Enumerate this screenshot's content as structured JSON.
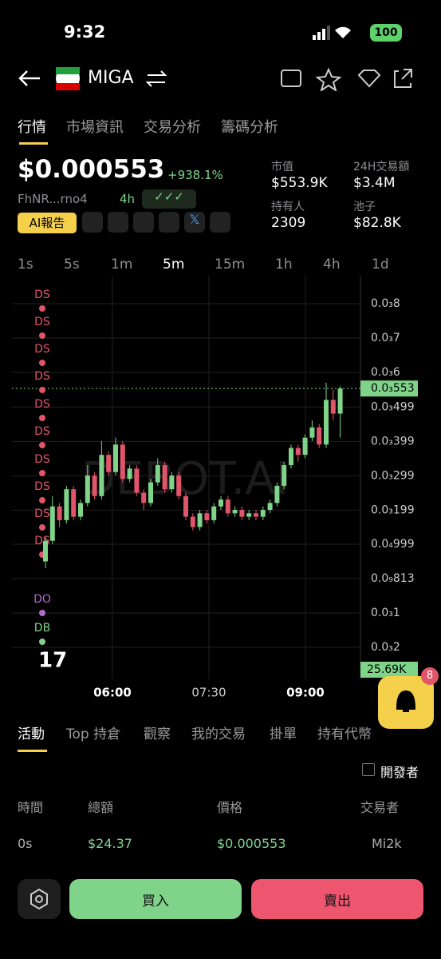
{
  "status": {
    "time": "9:32",
    "battery": "100"
  },
  "header": {
    "symbol": "MIGA"
  },
  "tabs": [
    "行情",
    "市場資訊",
    "交易分析",
    "籌碼分析"
  ],
  "token": {
    "price": "$0.000553",
    "change": "+938.1%",
    "address": "FhNR...rno4",
    "age": "4h",
    "ai_button": "AI報告"
  },
  "stats": [
    {
      "label": "市值",
      "value": "$553.9K"
    },
    {
      "label": "24H交易額",
      "value": "$3.4M"
    },
    {
      "label": "持有人",
      "value": "2309"
    },
    {
      "label": "池子",
      "value": "$82.8K"
    }
  ],
  "timeframes": [
    "1s",
    "5s",
    "1m",
    "5m",
    "15m",
    "1h",
    "4h",
    "1d"
  ],
  "chart_data": {
    "type": "candlestick",
    "watermark": "DEBOT.AI",
    "ylim": [
      0,
      0.000858
    ],
    "yticks": [
      {
        "value": 0.0008,
        "label": "0.0₃8"
      },
      {
        "value": 0.0007,
        "label": "0.0₃7"
      },
      {
        "value": 0.0006,
        "label": "0.0₃6"
      },
      {
        "value": 0.000499,
        "label": "0.0₃499"
      },
      {
        "value": 0.000399,
        "label": "0.0₃399"
      },
      {
        "value": 0.000299,
        "label": "0.0₃299"
      },
      {
        "value": 0.000199,
        "label": "0.0₃199"
      },
      {
        "value": 9.99e-05,
        "label": "0.0₄999"
      }
    ],
    "axis_extra_labels": [
      "0.0₉813",
      "0.0₃1",
      "0.0₃2"
    ],
    "current_price": {
      "value": 0.000553,
      "label": "0.0₃553"
    },
    "volume_label": "25.69K",
    "x_labels": [
      "06:00",
      "07:30",
      "09:00"
    ],
    "markers": [
      "DS",
      "DS",
      "DS",
      "DS",
      "DS",
      "DS",
      "DS",
      "DS",
      "DS",
      "DS",
      "DO",
      "DB"
    ],
    "up_color": "#7fd48a",
    "down_color": "#e0556a",
    "candles": [
      {
        "open": 5e-05,
        "high": 0.00012,
        "low": 3e-05,
        "close": 0.00011
      },
      {
        "open": 0.00011,
        "high": 0.00024,
        "low": 0.0001,
        "close": 0.00021
      },
      {
        "open": 0.00021,
        "high": 0.00022,
        "low": 0.00015,
        "close": 0.00017
      },
      {
        "open": 0.00017,
        "high": 0.00027,
        "low": 0.00016,
        "close": 0.00026
      },
      {
        "open": 0.00026,
        "high": 0.00027,
        "low": 0.00017,
        "close": 0.00018
      },
      {
        "open": 0.00018,
        "high": 0.00023,
        "low": 0.00017,
        "close": 0.00022
      },
      {
        "open": 0.00022,
        "high": 0.00033,
        "low": 0.00021,
        "close": 0.0003
      },
      {
        "open": 0.0003,
        "high": 0.00031,
        "low": 0.00023,
        "close": 0.00024
      },
      {
        "open": 0.00024,
        "high": 0.0004,
        "low": 0.00023,
        "close": 0.00036
      },
      {
        "open": 0.00036,
        "high": 0.00037,
        "low": 0.0003,
        "close": 0.00031
      },
      {
        "open": 0.00031,
        "high": 0.00041,
        "low": 0.0003,
        "close": 0.00039
      },
      {
        "open": 0.00039,
        "high": 0.0004,
        "low": 0.00028,
        "close": 0.00029
      },
      {
        "open": 0.00029,
        "high": 0.00033,
        "low": 0.00028,
        "close": 0.00032
      },
      {
        "open": 0.00032,
        "high": 0.00033,
        "low": 0.00024,
        "close": 0.00025
      },
      {
        "open": 0.00025,
        "high": 0.00026,
        "low": 0.0002,
        "close": 0.00022
      },
      {
        "open": 0.00022,
        "high": 0.00029,
        "low": 0.00021,
        "close": 0.00028
      },
      {
        "open": 0.00028,
        "high": 0.00035,
        "low": 0.00027,
        "close": 0.00033
      },
      {
        "open": 0.00033,
        "high": 0.00034,
        "low": 0.00025,
        "close": 0.00026
      },
      {
        "open": 0.00026,
        "high": 0.00031,
        "low": 0.00025,
        "close": 0.0003
      },
      {
        "open": 0.0003,
        "high": 0.00031,
        "low": 0.00023,
        "close": 0.00024
      },
      {
        "open": 0.00024,
        "high": 0.00025,
        "low": 0.00017,
        "close": 0.00018
      },
      {
        "open": 0.00018,
        "high": 0.00019,
        "low": 0.00014,
        "close": 0.00015
      },
      {
        "open": 0.00015,
        "high": 0.0002,
        "low": 0.00014,
        "close": 0.00019
      },
      {
        "open": 0.00019,
        "high": 0.0002,
        "low": 0.00016,
        "close": 0.00017
      },
      {
        "open": 0.00017,
        "high": 0.00022,
        "low": 0.00016,
        "close": 0.00021
      },
      {
        "open": 0.00021,
        "high": 0.00024,
        "low": 0.0002,
        "close": 0.00023
      },
      {
        "open": 0.00023,
        "high": 0.00024,
        "low": 0.00018,
        "close": 0.00019
      },
      {
        "open": 0.00019,
        "high": 0.00021,
        "low": 0.00018,
        "close": 0.0002
      },
      {
        "open": 0.0002,
        "high": 0.00021,
        "low": 0.00017,
        "close": 0.00018
      },
      {
        "open": 0.00018,
        "high": 0.0002,
        "low": 0.00017,
        "close": 0.00019
      },
      {
        "open": 0.00019,
        "high": 0.0002,
        "low": 0.00017,
        "close": 0.00018
      },
      {
        "open": 0.00018,
        "high": 0.00021,
        "low": 0.00017,
        "close": 0.0002
      },
      {
        "open": 0.0002,
        "high": 0.00023,
        "low": 0.00019,
        "close": 0.00022
      },
      {
        "open": 0.00022,
        "high": 0.00028,
        "low": 0.00021,
        "close": 0.00027
      },
      {
        "open": 0.00027,
        "high": 0.00034,
        "low": 0.00026,
        "close": 0.00033
      },
      {
        "open": 0.00033,
        "high": 0.00039,
        "low": 0.00032,
        "close": 0.00038
      },
      {
        "open": 0.00038,
        "high": 0.00039,
        "low": 0.00034,
        "close": 0.00036
      },
      {
        "open": 0.00036,
        "high": 0.00042,
        "low": 0.00035,
        "close": 0.00041
      },
      {
        "open": 0.00041,
        "high": 0.00046,
        "low": 0.0004,
        "close": 0.00044
      },
      {
        "open": 0.00044,
        "high": 0.00045,
        "low": 0.00038,
        "close": 0.00039
      },
      {
        "open": 0.00039,
        "high": 0.00057,
        "low": 0.00038,
        "close": 0.00052
      },
      {
        "open": 0.00052,
        "high": 0.00055,
        "low": 0.00046,
        "close": 0.00048
      },
      {
        "open": 0.00048,
        "high": 0.00056,
        "low": 0.00041,
        "close": 0.000553
      }
    ]
  },
  "notification_count": "8",
  "activity_tabs": [
    "活動",
    "Top 持倉",
    "觀察",
    "我的交易",
    "掛單",
    "持有代幣"
  ],
  "developer_filter": "開發者",
  "table": {
    "headers": [
      "時間",
      "總額",
      "價格",
      "交易者"
    ],
    "rows": [
      [
        "0s",
        "$24.37",
        "$0.000553",
        "Mi2k"
      ]
    ]
  },
  "actions": {
    "buy": "買入",
    "sell": "賣出"
  }
}
